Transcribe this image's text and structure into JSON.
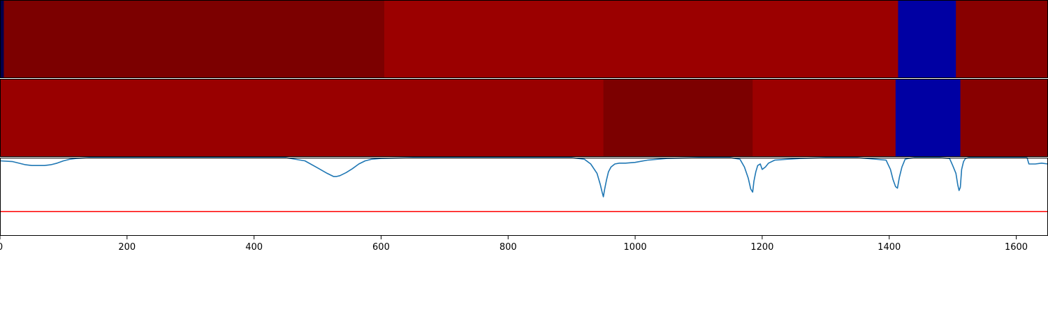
{
  "chart_data": [
    {
      "type": "heatmap",
      "panel": "top-strip",
      "xlim": [
        0,
        1650
      ],
      "colormap": "seismic",
      "segments": [
        {
          "start": 0,
          "end": 6,
          "color": "#00004c"
        },
        {
          "start": 6,
          "end": 605,
          "color": "#7c0000"
        },
        {
          "start": 605,
          "end": 1414,
          "color": "#9b0000"
        },
        {
          "start": 1414,
          "end": 1505,
          "color": "#0000a3"
        },
        {
          "start": 1505,
          "end": 1650,
          "color": "#880000"
        }
      ]
    },
    {
      "type": "heatmap",
      "panel": "middle-strip",
      "xlim": [
        0,
        1650
      ],
      "colormap": "seismic",
      "segments": [
        {
          "start": 0,
          "end": 950,
          "color": "#990000"
        },
        {
          "start": 950,
          "end": 1185,
          "color": "#7c0000"
        },
        {
          "start": 1185,
          "end": 1410,
          "color": "#9b0000"
        },
        {
          "start": 1410,
          "end": 1512,
          "color": "#0000a3"
        },
        {
          "start": 1512,
          "end": 1650,
          "color": "#880000"
        }
      ]
    },
    {
      "type": "line",
      "panel": "bottom-signal",
      "xlim": [
        0,
        1650
      ],
      "ylim": [
        0,
        1
      ],
      "grid": false,
      "x_ticks": [
        "0",
        "200",
        "400",
        "600",
        "800",
        "1000",
        "1200",
        "1400",
        "1600"
      ],
      "series": [
        {
          "color": "#1f77b4",
          "x": [
            0,
            20,
            40,
            50,
            60,
            70,
            80,
            90,
            100,
            110,
            120,
            140,
            160,
            200,
            300,
            400,
            450,
            480,
            500,
            515,
            525,
            530,
            535,
            545,
            555,
            565,
            575,
            585,
            600,
            650,
            700,
            750,
            800,
            850,
            900,
            920,
            930,
            940,
            945,
            948,
            950,
            952,
            955,
            958,
            962,
            968,
            975,
            985,
            1000,
            1020,
            1050,
            1100,
            1150,
            1165,
            1172,
            1178,
            1182,
            1185,
            1187,
            1190,
            1193,
            1197,
            1200,
            1205,
            1210,
            1220,
            1240,
            1260,
            1300,
            1350,
            1395,
            1402,
            1406,
            1410,
            1413,
            1416,
            1420,
            1425,
            1430,
            1440,
            1460,
            1480,
            1495,
            1500,
            1505,
            1508,
            1510,
            1512,
            1514,
            1517,
            1520,
            1525,
            1535,
            1550,
            1570,
            1590,
            1600,
            1617,
            1620,
            1630,
            1640,
            1650
          ],
          "y": [
            0.96,
            0.95,
            0.91,
            0.9,
            0.9,
            0.9,
            0.91,
            0.93,
            0.96,
            0.98,
            0.99,
            1.0,
            1.0,
            1.0,
            1.0,
            1.0,
            1.0,
            0.96,
            0.87,
            0.8,
            0.76,
            0.76,
            0.77,
            0.81,
            0.86,
            0.92,
            0.96,
            0.98,
            0.99,
            1.0,
            1.0,
            1.0,
            1.0,
            1.0,
            1.0,
            0.98,
            0.92,
            0.8,
            0.66,
            0.56,
            0.5,
            0.6,
            0.72,
            0.82,
            0.88,
            0.92,
            0.93,
            0.93,
            0.94,
            0.97,
            0.99,
            1.0,
            1.0,
            0.98,
            0.88,
            0.74,
            0.6,
            0.56,
            0.7,
            0.82,
            0.9,
            0.92,
            0.85,
            0.88,
            0.93,
            0.97,
            0.98,
            0.99,
            1.0,
            1.0,
            0.97,
            0.85,
            0.72,
            0.63,
            0.61,
            0.75,
            0.88,
            0.98,
            0.99,
            1.0,
            1.0,
            1.0,
            0.99,
            0.9,
            0.8,
            0.65,
            0.58,
            0.62,
            0.85,
            0.95,
            0.99,
            1.0,
            1.0,
            1.0,
            1.0,
            1.0,
            1.0,
            1.0,
            0.92,
            0.92,
            0.93,
            0.92
          ]
        },
        {
          "color": "#ff0000",
          "x": [
            0,
            1650
          ],
          "y": [
            0.31,
            0.31
          ]
        }
      ]
    }
  ]
}
